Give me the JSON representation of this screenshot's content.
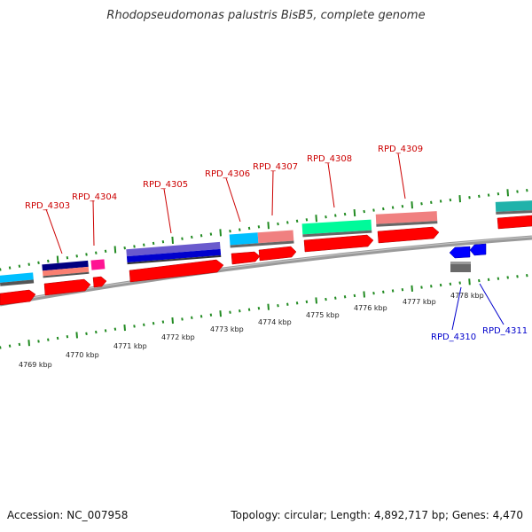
{
  "title": "Rhodopseudomonas palustris BisB5, complete genome",
  "footer": {
    "accession": "Accession: NC_007958",
    "summary": "Topology: circular; Length: 4,892,717 bp; Genes: 4,470"
  },
  "colors": {
    "backbone": "#8c8c8c",
    "tick": "#228b22",
    "cds": "#ff0000",
    "label_forward": "#cc0000",
    "label_reverse": "#0000cc"
  },
  "axis": {
    "ticks": [
      {
        "label": "4769 kbp"
      },
      {
        "label": "4770 kbp"
      },
      {
        "label": "4771 kbp"
      },
      {
        "label": "4772 kbp"
      },
      {
        "label": "4773 kbp"
      },
      {
        "label": "4774 kbp"
      },
      {
        "label": "4775 kbp"
      },
      {
        "label": "4776 kbp"
      },
      {
        "label": "4777 kbp"
      },
      {
        "label": "4778 kbp"
      }
    ]
  },
  "genes": {
    "labeled": [
      {
        "name": "RPD_4303",
        "strand": "forward"
      },
      {
        "name": "RPD_4304",
        "strand": "forward"
      },
      {
        "name": "RPD_4305",
        "strand": "forward"
      },
      {
        "name": "RPD_4306",
        "strand": "forward"
      },
      {
        "name": "RPD_4307",
        "strand": "forward"
      },
      {
        "name": "RPD_4308",
        "strand": "forward"
      },
      {
        "name": "RPD_4309",
        "strand": "forward"
      },
      {
        "name": "RPD_4310",
        "strand": "reverse"
      },
      {
        "name": "RPD_4311",
        "strand": "reverse"
      }
    ],
    "category_colors": [
      "#00bfff",
      "#000080",
      "#fa8072",
      "#ff1493",
      "#6a5acd",
      "#0000cd",
      "#00fa9a",
      "#f08080",
      "#20b2aa",
      "#696969"
    ]
  }
}
